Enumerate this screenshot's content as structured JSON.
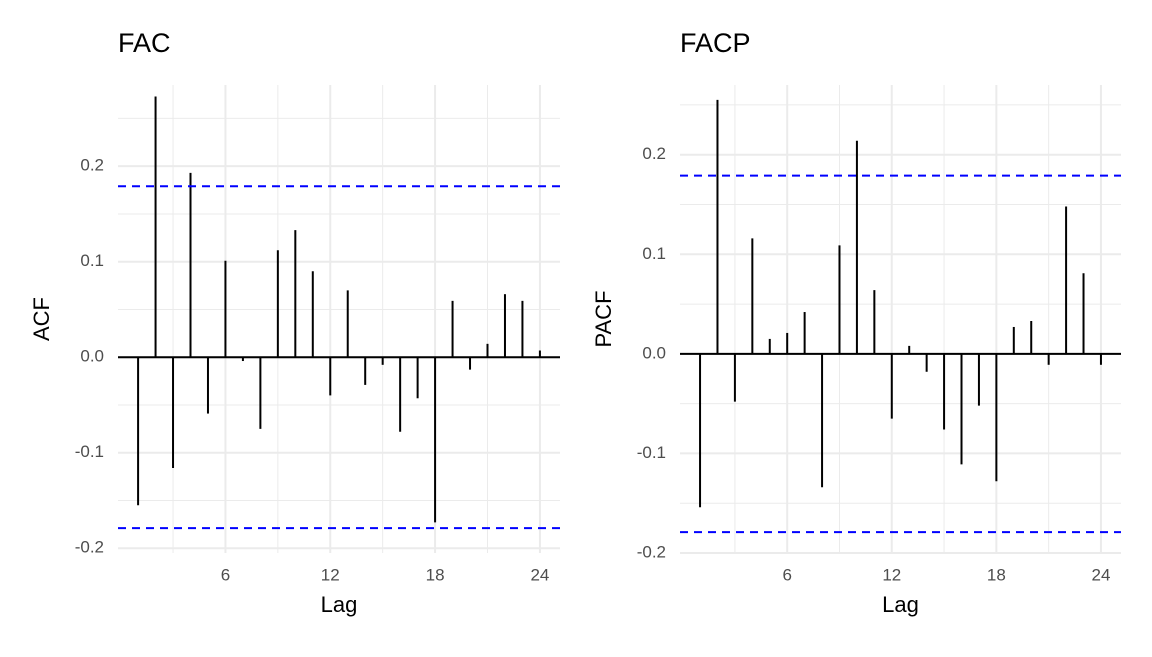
{
  "chart_data": [
    {
      "type": "stem",
      "title": "FAC",
      "x_label": "Lag",
      "y_label": "ACF",
      "x": [
        1,
        2,
        3,
        4,
        5,
        6,
        7,
        8,
        9,
        10,
        11,
        12,
        13,
        14,
        15,
        16,
        17,
        18,
        19,
        20,
        21,
        22,
        23,
        24
      ],
      "values": [
        -0.155,
        0.273,
        -0.116,
        0.193,
        -0.059,
        0.101,
        -0.004,
        -0.075,
        0.112,
        0.133,
        0.09,
        -0.04,
        0.07,
        -0.029,
        -0.008,
        -0.078,
        -0.043,
        -0.173,
        0.059,
        -0.013,
        0.014,
        0.066,
        0.059,
        0.007
      ],
      "color": "#000000",
      "conf_limits": [
        -0.179,
        0.179
      ],
      "conf_color": "#0000ff",
      "xlim": [
        -0.15,
        25.15
      ],
      "xticks": [
        6,
        12,
        18,
        24
      ],
      "ylim": [
        -0.205,
        0.285
      ],
      "yticks": [
        -0.2,
        -0.1,
        {
          "value": 0,
          "label": "0.0"
        },
        0.1,
        0.2
      ],
      "grid": true
    },
    {
      "type": "stem",
      "title": "FACP",
      "x_label": "Lag",
      "y_label": "PACF",
      "x": [
        1,
        2,
        3,
        4,
        5,
        6,
        7,
        8,
        9,
        10,
        11,
        12,
        13,
        14,
        15,
        16,
        17,
        18,
        19,
        20,
        21,
        22,
        23,
        24
      ],
      "values": [
        -0.154,
        0.255,
        -0.048,
        0.116,
        0.015,
        0.021,
        0.042,
        -0.134,
        0.109,
        0.214,
        0.064,
        -0.065,
        0.008,
        -0.018,
        -0.076,
        -0.111,
        -0.052,
        -0.128,
        0.027,
        0.033,
        -0.011,
        0.148,
        0.081,
        -0.011
      ],
      "color": "#000000",
      "conf_limits": [
        -0.179,
        0.179
      ],
      "conf_color": "#0000ff",
      "xlim": [
        -0.15,
        25.15
      ],
      "xticks": [
        6,
        12,
        18,
        24
      ],
      "ylim": [
        -0.2,
        0.27
      ],
      "yticks": [
        -0.2,
        -0.1,
        {
          "value": 0,
          "label": "0.0"
        },
        0.1,
        0.2
      ],
      "grid": true
    }
  ]
}
